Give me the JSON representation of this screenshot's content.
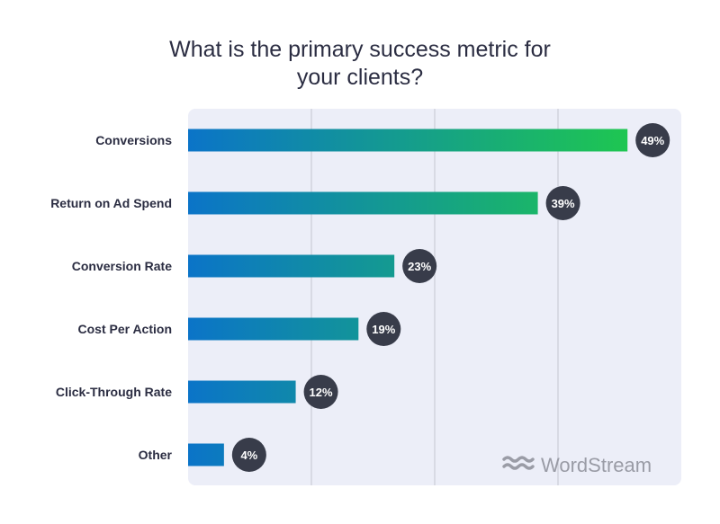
{
  "chart_data": {
    "type": "bar",
    "orientation": "horizontal",
    "title": "What is the primary success metric for\nyour clients?",
    "categories": [
      "Conversions",
      "Return on Ad Spend",
      "Conversion Rate",
      "Cost Per Action",
      "Click-Through Rate",
      "Other"
    ],
    "values": [
      49,
      39,
      23,
      19,
      12,
      4
    ],
    "data_labels": [
      "49%",
      "39%",
      "23%",
      "19%",
      "12%",
      "4%"
    ],
    "xlim": [
      0,
      55
    ],
    "grid": true,
    "legend": "none"
  },
  "colors": {
    "plot_background": "#eceef8",
    "bar_start": "#0b74c8",
    "bar_end": "#1ec651",
    "badge": "#383c4a",
    "badge_text": "#ffffff",
    "label_text": "#2b2d42",
    "gridline": "#c4c6d0",
    "logo": "#9a9ca6"
  },
  "branding": {
    "logo_icon": "wave-icon",
    "logo_text": "WordStream"
  }
}
